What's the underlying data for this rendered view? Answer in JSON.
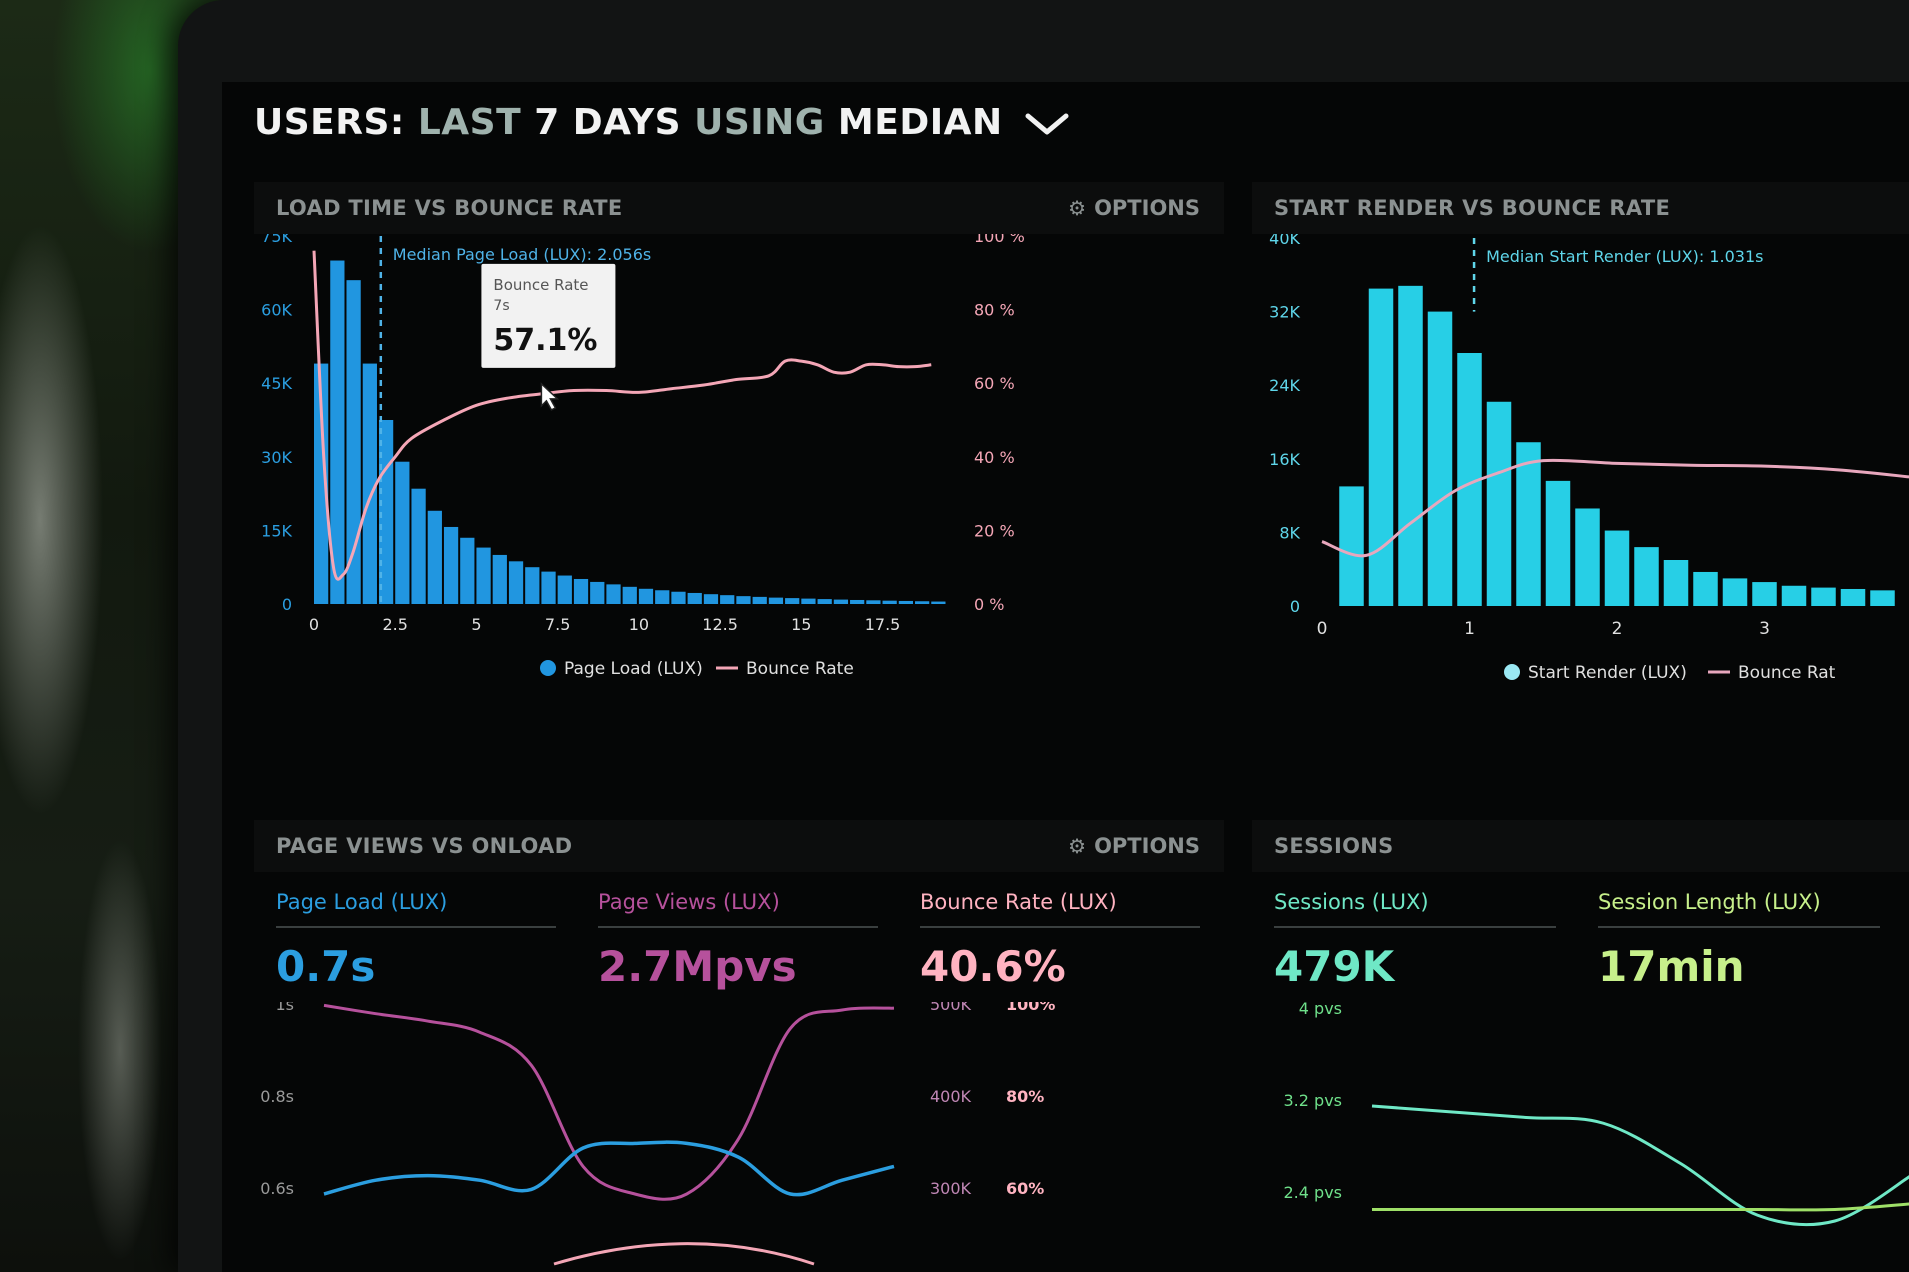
{
  "header": {
    "part1": "USERS:",
    "part2": "LAST",
    "part3": "7 DAYS",
    "part4": "USING",
    "part5": "MEDIAN"
  },
  "options_label": "OPTIONS",
  "panels": {
    "load_time": {
      "title": "LOAD TIME VS BOUNCE RATE",
      "median_label": "Median Page Load (LUX): 2.056s",
      "legend": [
        "Page Load (LUX)",
        "Bounce Rate"
      ],
      "tooltip": {
        "title": "Bounce Rate",
        "sub": "7s",
        "value": "57.1%"
      }
    },
    "start_render": {
      "title": "START RENDER VS BOUNCE RATE",
      "median_label": "Median Start Render (LUX): 1.031s",
      "legend": [
        "Start Render (LUX)",
        "Bounce Rat"
      ]
    },
    "page_views": {
      "title": "PAGE VIEWS VS ONLOAD",
      "metrics": [
        {
          "label": "Page Load (LUX)",
          "value": "0.7s",
          "color": "#2b9ee0"
        },
        {
          "label": "Page Views (LUX)",
          "value": "2.7Mpvs",
          "color": "#b6519c"
        },
        {
          "label": "Bounce Rate (LUX)",
          "value": "40.6%",
          "color": "#ffb3c1"
        }
      ]
    },
    "sessions": {
      "title": "SESSIONS",
      "metrics": [
        {
          "label": "Sessions (LUX)",
          "value": "479K",
          "color": "#6fe8c6"
        },
        {
          "label": "Session Length (LUX)",
          "value": "17min",
          "color": "#c7f08b"
        }
      ]
    }
  },
  "chart_data": [
    {
      "type": "bar",
      "title": "LOAD TIME VS BOUNCE RATE",
      "x_ticks": [
        "0",
        "2.5",
        "5",
        "7.5",
        "10",
        "12.5",
        "15",
        "17.5"
      ],
      "y_left_ticks": [
        "0",
        "15K",
        "30K",
        "45K",
        "60K",
        "75K"
      ],
      "y_right_ticks": [
        "0 %",
        "20 %",
        "40 %",
        "60 %",
        "80 %",
        "100 %"
      ],
      "ylim": [
        0,
        75000
      ],
      "xlim": [
        0,
        19.7
      ],
      "bar_width": 0.5,
      "median_x": 2.056,
      "bar_color": "#2196e0",
      "line_color": "#f4a6b6",
      "series": [
        {
          "name": "Page Load (LUX)",
          "x": [
            0,
            0.5,
            1,
            1.5,
            2,
            2.5,
            3,
            3.5,
            4,
            4.5,
            5,
            5.5,
            6,
            6.5,
            7,
            7.5,
            8,
            8.5,
            9,
            9.5,
            10,
            10.5,
            11,
            11.5,
            12,
            12.5,
            13,
            13.5,
            14,
            14.5,
            15,
            15.5,
            16,
            16.5,
            17,
            17.5,
            18,
            18.5,
            19
          ],
          "values": [
            49000,
            70000,
            66000,
            49000,
            37500,
            29000,
            23500,
            19000,
            15700,
            13500,
            11500,
            10000,
            8700,
            7500,
            6600,
            5800,
            5100,
            4500,
            4000,
            3500,
            3100,
            2800,
            2500,
            2250,
            2000,
            1800,
            1600,
            1450,
            1300,
            1200,
            1100,
            1000,
            900,
            820,
            750,
            680,
            620,
            560,
            500
          ]
        },
        {
          "name": "Bounce Rate",
          "x": [
            0,
            0.3,
            0.6,
            0.9,
            1.2,
            1.6,
            2.0,
            2.5,
            3.0,
            4.0,
            5.0,
            6.0,
            7.0,
            8.0,
            9.0,
            10.0,
            11.0,
            12.0,
            13.0,
            14.0,
            14.5,
            15.0,
            15.5,
            16.0,
            16.5,
            17.0,
            17.5,
            18.0,
            18.5,
            19.0
          ],
          "values": [
            96,
            40,
            10,
            8,
            14,
            26,
            34,
            40,
            45,
            50,
            54,
            56,
            57.1,
            58,
            58,
            57.5,
            58.5,
            59.5,
            61,
            62,
            66,
            66,
            65,
            63,
            63,
            65,
            65,
            64.5,
            64.5,
            65
          ]
        }
      ],
      "legend": [
        "Page Load (LUX)",
        "Bounce Rate"
      ]
    },
    {
      "type": "bar",
      "title": "START RENDER VS BOUNCE RATE",
      "x_ticks": [
        "0",
        "1",
        "2",
        "3"
      ],
      "y_left_ticks": [
        "0",
        "8K",
        "16K",
        "24K",
        "32K",
        "40K"
      ],
      "ylim": [
        0,
        40000
      ],
      "xlim": [
        0,
        4
      ],
      "bar_width": 0.2,
      "median_x": 1.031,
      "bar_color": "#27cfe6",
      "line_color": "#e8a7bd",
      "series": [
        {
          "name": "Start Render (LUX)",
          "x": [
            0.2,
            0.4,
            0.6,
            0.8,
            1.0,
            1.2,
            1.4,
            1.6,
            1.8,
            2.0,
            2.2,
            2.4,
            2.6,
            2.8,
            3.0,
            3.2,
            3.4,
            3.6,
            3.8
          ],
          "values": [
            13000,
            34500,
            34800,
            32000,
            27500,
            22200,
            17800,
            13600,
            10600,
            8200,
            6400,
            5000,
            3700,
            3000,
            2600,
            2200,
            2000,
            1850,
            1700
          ]
        },
        {
          "name": "Bounce Rate",
          "x": [
            0,
            0.3,
            0.6,
            0.9,
            1.2,
            1.5,
            2.0,
            2.5,
            3.0,
            3.5,
            4.0
          ],
          "values": [
            7000,
            5500,
            9000,
            12500,
            14500,
            15800,
            15500,
            15300,
            15200,
            14800,
            14000
          ]
        }
      ],
      "legend": [
        "Start Render (LUX)",
        "Bounce Rat"
      ]
    },
    {
      "type": "line",
      "title": "PAGE VIEWS VS ONLOAD",
      "y_left_ticks": [
        "1s",
        "0.8s",
        "0.6s"
      ],
      "y_mid_ticks": [
        "500K",
        "400K",
        "300K"
      ],
      "y_right_ticks": [
        "100%",
        "80%",
        "60%"
      ],
      "series": [
        {
          "name": "Page Load (LUX)",
          "color": "#2b9ee0",
          "values": [
            0.6,
            0.63,
            0.64,
            0.63,
            0.61,
            0.7,
            0.71,
            0.71,
            0.68,
            0.6,
            0.63,
            0.66
          ]
        },
        {
          "name": "Page Views (LUX)",
          "color": "#b6519c",
          "values": [
            505,
            496,
            488,
            476,
            440,
            330,
            300,
            300,
            360,
            480,
            500,
            502
          ]
        }
      ]
    },
    {
      "type": "line",
      "title": "SESSIONS",
      "y_left_ticks": [
        "4 pvs",
        "3.2 pvs",
        "2.4 pvs"
      ],
      "series": [
        {
          "name": "Sessions (LUX)",
          "color": "#6fe8c6",
          "values": [
            3.2,
            3.15,
            3.1,
            3.05,
            2.7,
            2.25,
            2.2,
            2.6
          ]
        },
        {
          "name": "Session Length (LUX)",
          "color": "#9fe068",
          "values": [
            2.3,
            2.3,
            2.3,
            2.3,
            2.3,
            2.3,
            2.3,
            2.35
          ]
        }
      ]
    }
  ]
}
